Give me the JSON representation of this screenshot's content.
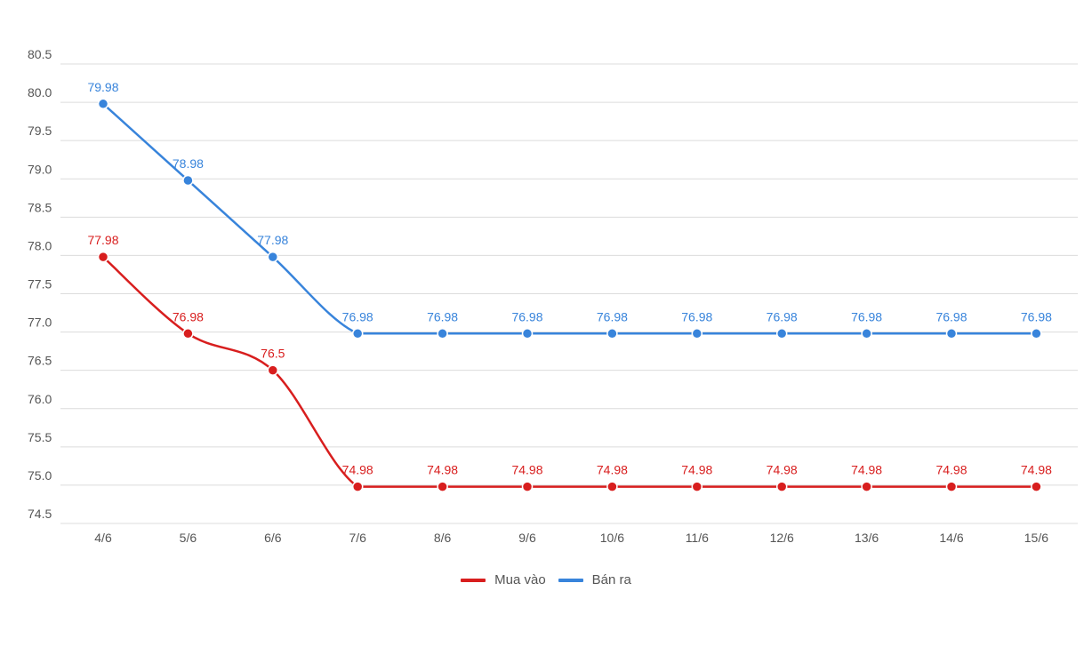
{
  "chart_data": {
    "type": "line",
    "categories": [
      "4/6",
      "5/6",
      "6/6",
      "7/6",
      "8/6",
      "9/6",
      "10/6",
      "11/6",
      "12/6",
      "13/6",
      "14/6",
      "15/6"
    ],
    "series": [
      {
        "name": "Mua vào",
        "color": "#d81e1e",
        "values": [
          77.98,
          76.98,
          76.5,
          74.98,
          74.98,
          74.98,
          74.98,
          74.98,
          74.98,
          74.98,
          74.98,
          74.98
        ],
        "labels": [
          "77.98",
          "76.98",
          "76.5",
          "74.98",
          "74.98",
          "74.98",
          "74.98",
          "74.98",
          "74.98",
          "74.98",
          "74.98",
          "74.98"
        ]
      },
      {
        "name": "Bán ra",
        "color": "#3884db",
        "values": [
          79.98,
          78.98,
          77.98,
          76.98,
          76.98,
          76.98,
          76.98,
          76.98,
          76.98,
          76.98,
          76.98,
          76.98
        ],
        "labels": [
          "79.98",
          "78.98",
          "77.98",
          "76.98",
          "76.98",
          "76.98",
          "76.98",
          "76.98",
          "76.98",
          "76.98",
          "76.98",
          "76.98"
        ]
      }
    ],
    "yticks": [
      "74.5",
      "75.0",
      "75.5",
      "76.0",
      "76.5",
      "77.0",
      "77.5",
      "78.0",
      "78.5",
      "79.0",
      "79.5",
      "80.0",
      "80.5"
    ],
    "ylim": [
      74.5,
      80.5
    ],
    "grid": true,
    "legend_position": "bottom-center"
  }
}
